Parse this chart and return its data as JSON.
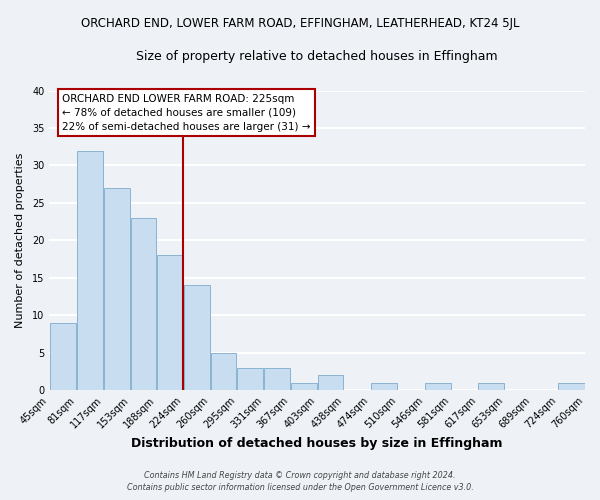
{
  "title": "ORCHARD END, LOWER FARM ROAD, EFFINGHAM, LEATHERHEAD, KT24 5JL",
  "subtitle": "Size of property relative to detached houses in Effingham",
  "xlabel": "Distribution of detached houses by size in Effingham",
  "ylabel": "Number of detached properties",
  "bar_color": "#c8ddf0",
  "bar_edgecolor": "#8ab4d4",
  "bar_left_edges": [
    45,
    81,
    117,
    153,
    188,
    224,
    260,
    295,
    331,
    367,
    403,
    438,
    474,
    510,
    546,
    581,
    617,
    653,
    689,
    724
  ],
  "bar_widths": [
    36,
    36,
    36,
    35,
    36,
    36,
    35,
    36,
    36,
    36,
    35,
    36,
    36,
    36,
    35,
    36,
    36,
    36,
    35,
    36
  ],
  "bar_heights": [
    9,
    32,
    27,
    23,
    18,
    14,
    5,
    3,
    3,
    1,
    2,
    0,
    1,
    0,
    1,
    0,
    1,
    0,
    0,
    1
  ],
  "tick_labels": [
    "45sqm",
    "81sqm",
    "117sqm",
    "153sqm",
    "188sqm",
    "224sqm",
    "260sqm",
    "295sqm",
    "331sqm",
    "367sqm",
    "403sqm",
    "438sqm",
    "474sqm",
    "510sqm",
    "546sqm",
    "581sqm",
    "617sqm",
    "653sqm",
    "689sqm",
    "724sqm",
    "760sqm"
  ],
  "tick_positions": [
    45,
    81,
    117,
    153,
    188,
    224,
    260,
    295,
    331,
    367,
    403,
    438,
    474,
    510,
    546,
    581,
    617,
    653,
    689,
    724,
    760
  ],
  "ylim": [
    0,
    40
  ],
  "xlim": [
    45,
    760
  ],
  "vline_x": 224,
  "vline_color": "#aa0000",
  "annotation_line1": "ORCHARD END LOWER FARM ROAD: 225sqm",
  "annotation_line2": "← 78% of detached houses are smaller (109)",
  "annotation_line3": "22% of semi-detached houses are larger (31) →",
  "annotation_box_edgecolor": "#aa0000",
  "footer1": "Contains HM Land Registry data © Crown copyright and database right 2024.",
  "footer2": "Contains public sector information licensed under the Open Government Licence v3.0.",
  "background_color": "#eef2f7",
  "grid_color": "#ffffff"
}
